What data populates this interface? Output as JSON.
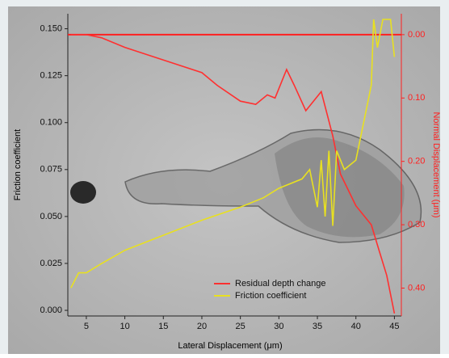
{
  "chart_data": {
    "type": "line",
    "x_label": "Lateral Displacement (μm)",
    "y_label": "Friction coefficient",
    "y2_label": "Normal Displacement (μm)",
    "xlim": [
      2.6,
      45.9
    ],
    "xticks": [
      5,
      10,
      15,
      20,
      25,
      30,
      35,
      40,
      45
    ],
    "ylim": [
      -0.003,
      0.158
    ],
    "yticks": [
      {
        "value": 0,
        "label": "0.000"
      },
      {
        "value": 0.025,
        "label": "0.025"
      },
      {
        "value": 0.05,
        "label": "0.050"
      },
      {
        "value": 0.075,
        "label": "0.075"
      },
      {
        "value": 0.1,
        "label": "0.100"
      },
      {
        "value": 0.125,
        "label": "0.125"
      },
      {
        "value": 0.15,
        "label": "0.150"
      }
    ],
    "y2lim": [
      0.444,
      -0.033
    ],
    "y2ticks": [
      {
        "value": 0,
        "label": "0.00"
      },
      {
        "value": 0.1,
        "label": "0.10"
      },
      {
        "value": 0.2,
        "label": "0.20"
      },
      {
        "value": 0.3,
        "label": "0.30"
      },
      {
        "value": 0.4,
        "label": "0.40"
      }
    ],
    "y2_color": "#ff2020",
    "legend": "lower right",
    "series": [
      {
        "name": "Residual depth change",
        "color": "#ff3030",
        "axis": "y2",
        "x": [
          3,
          5,
          7,
          10,
          15,
          20,
          22,
          25,
          27,
          28.5,
          29.5,
          31,
          32,
          33.5,
          35.5,
          37,
          38,
          40,
          42,
          43,
          44,
          45
        ],
        "values": [
          0,
          0,
          0.005,
          0.02,
          0.04,
          0.06,
          0.08,
          0.105,
          0.11,
          0.095,
          0.1,
          0.055,
          0.08,
          0.12,
          0.09,
          0.16,
          0.22,
          0.27,
          0.3,
          0.34,
          0.38,
          0.44
        ]
      },
      {
        "name": "Friction coefficient",
        "color": "#e8e020",
        "axis": "y",
        "x": [
          3,
          4,
          5,
          7,
          10,
          15,
          20,
          25,
          28,
          30,
          33,
          34,
          35,
          35.5,
          36,
          36.5,
          37,
          37.5,
          38.5,
          40,
          41,
          42,
          42.3,
          42.8,
          43.5,
          44.5,
          45
        ],
        "values": [
          0.012,
          0.02,
          0.02,
          0.025,
          0.032,
          0.04,
          0.048,
          0.055,
          0.06,
          0.065,
          0.07,
          0.075,
          0.055,
          0.08,
          0.05,
          0.085,
          0.045,
          0.085,
          0.075,
          0.08,
          0.1,
          0.12,
          0.155,
          0.14,
          0.155,
          0.155,
          0.135
        ]
      }
    ]
  }
}
